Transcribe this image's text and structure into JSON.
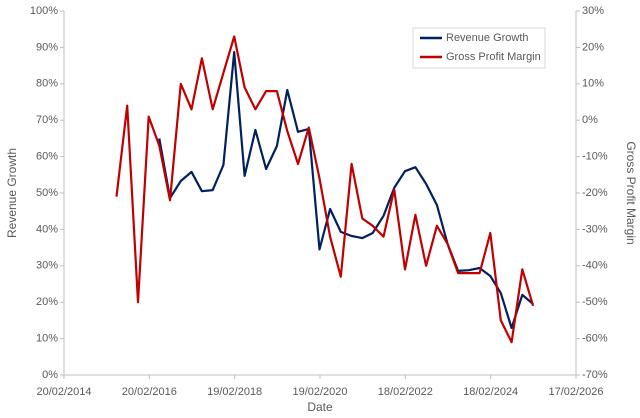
{
  "chart_data": {
    "type": "line",
    "x": [
      "2015-05-15",
      "2015-08-15",
      "2015-11-15",
      "2016-02-15",
      "2016-05-15",
      "2016-08-15",
      "2016-11-15",
      "2017-02-15",
      "2017-05-15",
      "2017-08-15",
      "2017-11-15",
      "2018-02-15",
      "2018-05-15",
      "2018-08-15",
      "2018-11-15",
      "2019-02-15",
      "2019-05-15",
      "2019-08-15",
      "2019-11-15",
      "2020-02-15",
      "2020-05-15",
      "2020-08-15",
      "2020-11-15",
      "2021-02-15",
      "2021-05-15",
      "2021-08-15",
      "2021-11-15",
      "2022-02-15",
      "2022-05-15",
      "2022-08-15",
      "2022-11-15",
      "2023-02-15",
      "2023-05-15",
      "2023-08-15",
      "2023-11-15",
      "2024-02-15",
      "2024-05-15",
      "2024-08-15",
      "2024-11-15",
      "2025-02-15"
    ],
    "series": [
      {
        "name": "Revenue Growth",
        "color": "#002060",
        "axis": "y",
        "values": [
          null,
          null,
          null,
          null,
          65,
          48.6,
          53.3,
          55.8,
          50.5,
          50.8,
          57.7,
          88.7,
          54.7,
          67.3,
          56.6,
          62.9,
          78.3,
          66.8,
          67.6,
          34.5,
          45.6,
          39.3,
          38.2,
          37.6,
          39,
          43.7,
          51.4,
          56,
          57.1,
          52.5,
          46.7,
          36,
          28.6,
          28.8,
          29.4,
          27.2,
          22.5,
          12.9,
          22,
          19.5
        ]
      },
      {
        "name": "Gross Profit Margin",
        "color": "#c00000",
        "axis": "y2",
        "values": [
          -21,
          4,
          -50,
          1,
          -7,
          -22,
          10,
          3,
          17,
          3,
          13,
          23,
          9,
          3,
          8,
          8,
          -3,
          -12,
          -2,
          -16,
          -32,
          -43,
          -12,
          -27,
          -29,
          -32,
          -19,
          -41,
          -26,
          -40,
          -29,
          -34,
          -42,
          -42,
          -42,
          -31,
          -55,
          -61,
          -41,
          -51
        ]
      }
    ],
    "x_label": "Date",
    "y_label": "Revenue Growth",
    "y2_label": "Gross Profit Margin",
    "xlim": [
      "2014-02-20",
      "2026-02-17"
    ],
    "xticks": [
      {
        "value": "2014-02-20",
        "label": "20/02/2014"
      },
      {
        "value": "2016-02-20",
        "label": "20/02/2016"
      },
      {
        "value": "2018-02-19",
        "label": "19/02/2018"
      },
      {
        "value": "2020-02-19",
        "label": "19/02/2020"
      },
      {
        "value": "2022-02-18",
        "label": "18/02/2022"
      },
      {
        "value": "2024-02-18",
        "label": "18/02/2024"
      },
      {
        "value": "2026-02-17",
        "label": "17/02/2026"
      }
    ],
    "ylim": [
      0,
      100
    ],
    "yticks": [
      {
        "value": 0,
        "label": "0%"
      },
      {
        "value": 10,
        "label": "10%"
      },
      {
        "value": 20,
        "label": "20%"
      },
      {
        "value": 30,
        "label": "30%"
      },
      {
        "value": 40,
        "label": "40%"
      },
      {
        "value": 50,
        "label": "50%"
      },
      {
        "value": 60,
        "label": "60%"
      },
      {
        "value": 70,
        "label": "70%"
      },
      {
        "value": 80,
        "label": "80%"
      },
      {
        "value": 90,
        "label": "90%"
      },
      {
        "value": 100,
        "label": "100%"
      }
    ],
    "y2lim": [
      -70,
      30
    ],
    "y2ticks": [
      {
        "value": -70,
        "label": "-70%"
      },
      {
        "value": -60,
        "label": "-60%"
      },
      {
        "value": -50,
        "label": "-50%"
      },
      {
        "value": -40,
        "label": "-40%"
      },
      {
        "value": -30,
        "label": "-30%"
      },
      {
        "value": -20,
        "label": "-20%"
      },
      {
        "value": -10,
        "label": "-10%"
      },
      {
        "value": 0,
        "label": "0%"
      },
      {
        "value": 10,
        "label": "10%"
      },
      {
        "value": 20,
        "label": "20%"
      },
      {
        "value": 30,
        "label": "30%"
      }
    ],
    "grid": false,
    "legend": "upper right"
  }
}
